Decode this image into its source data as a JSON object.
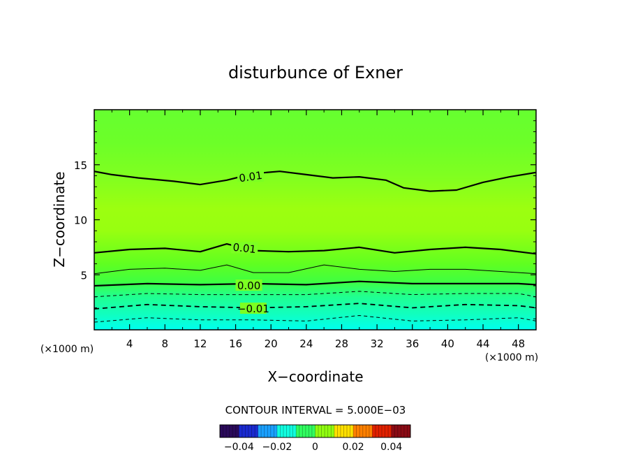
{
  "chart_data": {
    "type": "contour",
    "title": "disturbunce of Exner",
    "xlabel": "X−coordinate",
    "ylabel": "Z−coordinate",
    "x_unit_left": "(×1000 m)",
    "x_unit_right": "(×1000 m)",
    "xlim": [
      0,
      50
    ],
    "ylim": [
      0,
      20
    ],
    "x_ticks": [
      "4",
      "8",
      "12",
      "16",
      "20",
      "24",
      "28",
      "32",
      "36",
      "40",
      "44",
      "48"
    ],
    "y_ticks": [
      "5",
      "10",
      "15"
    ],
    "contour_interval_text": "CONTOUR INTERVAL = 5.000E−03",
    "contour_labels": [
      "0.01",
      "0.01",
      "0.00",
      "−0.01"
    ],
    "contours": [
      {
        "level": 0.01,
        "style": "solid",
        "x": [
          0,
          2,
          5,
          9,
          12,
          15,
          18,
          21,
          24,
          27,
          30,
          33,
          35,
          38,
          41,
          44,
          47,
          50
        ],
        "y": [
          14.4,
          14.1,
          13.8,
          13.5,
          13.2,
          13.6,
          14.2,
          14.4,
          14.1,
          13.8,
          13.9,
          13.6,
          12.9,
          12.6,
          12.7,
          13.4,
          13.9,
          14.3
        ]
      },
      {
        "level": 0.01,
        "style": "solid",
        "x": [
          0,
          4,
          8,
          12,
          15,
          18,
          22,
          26,
          30,
          34,
          38,
          42,
          46,
          50
        ],
        "y": [
          7.0,
          7.3,
          7.4,
          7.1,
          7.8,
          7.2,
          7.1,
          7.2,
          7.5,
          7.0,
          7.3,
          7.5,
          7.3,
          6.9
        ]
      },
      {
        "level": 0.005,
        "style": "thin",
        "x": [
          0,
          4,
          8,
          12,
          15,
          18,
          22,
          26,
          30,
          34,
          38,
          42,
          46,
          50
        ],
        "y": [
          5.1,
          5.5,
          5.6,
          5.4,
          5.9,
          5.2,
          5.2,
          5.9,
          5.5,
          5.3,
          5.5,
          5.5,
          5.3,
          5.1
        ]
      },
      {
        "level": 0.0,
        "style": "solid",
        "x": [
          0,
          6,
          12,
          18,
          24,
          30,
          36,
          42,
          48,
          50
        ],
        "y": [
          4.0,
          4.2,
          4.1,
          4.2,
          4.1,
          4.4,
          4.2,
          4.2,
          4.2,
          4.1
        ]
      },
      {
        "level": -0.005,
        "style": "dashed-thin",
        "x": [
          0,
          6,
          12,
          18,
          24,
          30,
          36,
          42,
          48,
          50
        ],
        "y": [
          3.0,
          3.3,
          3.2,
          3.2,
          3.2,
          3.5,
          3.2,
          3.3,
          3.3,
          3.0
        ]
      },
      {
        "level": -0.01,
        "style": "dashed",
        "x": [
          0,
          6,
          12,
          18,
          24,
          30,
          36,
          42,
          48,
          50
        ],
        "y": [
          1.9,
          2.3,
          2.1,
          2.0,
          2.1,
          2.4,
          2.0,
          2.3,
          2.2,
          2.0
        ]
      },
      {
        "level": -0.015,
        "style": "dashed-thin",
        "x": [
          0,
          6,
          12,
          18,
          24,
          30,
          36,
          42,
          48,
          50
        ],
        "y": [
          0.7,
          1.1,
          0.9,
          0.9,
          0.8,
          1.3,
          0.8,
          0.9,
          1.1,
          0.8
        ]
      }
    ],
    "colorbar": {
      "ticks": [
        "−0.04",
        "−0.02",
        "0",
        "0.02",
        "0.04"
      ],
      "values": [
        -0.04,
        -0.02,
        0,
        0.02,
        0.04
      ],
      "range": [
        -0.05,
        0.05
      ],
      "colors": [
        "#2a0a5a",
        "#1a2ad0",
        "#1aa0ff",
        "#10ffe0",
        "#30ff60",
        "#90ff10",
        "#ffe000",
        "#ff8000",
        "#e02000",
        "#8a0a14"
      ]
    }
  }
}
